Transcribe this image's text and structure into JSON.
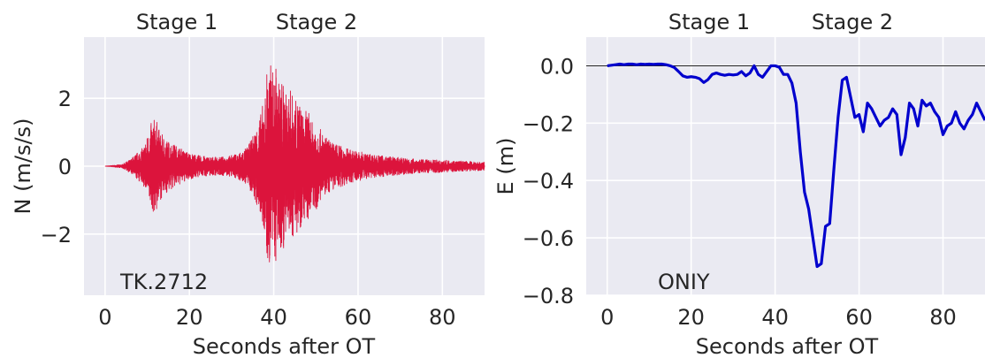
{
  "chart_data": [
    {
      "type": "line",
      "title": "",
      "xlabel": "Seconds after OT",
      "ylabel": "N (m/s/s)",
      "xlim": [
        -5,
        90
      ],
      "ylim": [
        -3.8,
        3.8
      ],
      "xticks": [
        0,
        20,
        40,
        60,
        80
      ],
      "xtick_labels": [
        "0",
        "20",
        "40",
        "60",
        "80"
      ],
      "yticks": [
        -2,
        0,
        2
      ],
      "ytick_labels": [
        "−2",
        "0",
        "2"
      ],
      "grid": true,
      "annotations": [
        "Stage 1",
        "Stage 2",
        "TK.2712"
      ],
      "series": [
        {
          "color": "#dc143c",
          "envelope_t": [
            0,
            4,
            6,
            8,
            9,
            10,
            11,
            12,
            13,
            15,
            17,
            19,
            21,
            23,
            25,
            27,
            29,
            31,
            33,
            34,
            35,
            36,
            37,
            38,
            38.5,
            39,
            39.5,
            40,
            40.5,
            41,
            42,
            43,
            44,
            45,
            46,
            47,
            48,
            49,
            50,
            52,
            54,
            56,
            58,
            60,
            62,
            65,
            70,
            75,
            80,
            85,
            90
          ],
          "envelope_amp": [
            0,
            0.05,
            0.2,
            0.45,
            0.55,
            0.9,
            1.3,
            1.45,
            1.0,
            0.75,
            0.6,
            0.45,
            0.35,
            0.3,
            0.28,
            0.26,
            0.3,
            0.35,
            0.5,
            0.6,
            0.9,
            1.2,
            1.6,
            2.2,
            3.2,
            2.9,
            3.1,
            2.6,
            3.0,
            2.5,
            2.6,
            2.1,
            2.3,
            1.9,
            2.0,
            1.5,
            1.7,
            1.3,
            1.3,
            0.9,
            0.7,
            0.6,
            0.5,
            0.45,
            0.38,
            0.32,
            0.25,
            0.2,
            0.18,
            0.15,
            0.12
          ]
        }
      ]
    },
    {
      "type": "line",
      "title": "",
      "xlabel": "Seconds after OT",
      "ylabel": "E (m)",
      "xlim": [
        -5,
        90
      ],
      "ylim": [
        -0.8,
        0.1
      ],
      "xticks": [
        0,
        20,
        40,
        60,
        80
      ],
      "xtick_labels": [
        "0",
        "20",
        "40",
        "60",
        "80"
      ],
      "yticks": [
        0.0,
        -0.2,
        -0.4,
        -0.6,
        -0.8
      ],
      "ytick_labels": [
        "0.0",
        "−0.2",
        "−0.4",
        "−0.6",
        "−0.8"
      ],
      "zero_line": true,
      "grid": true,
      "annotations": [
        "Stage 1",
        "Stage 2",
        "ONIY"
      ],
      "series": [
        {
          "color": "#0000cd",
          "x": [
            0,
            1,
            2,
            3,
            4,
            5,
            6,
            7,
            8,
            9,
            10,
            11,
            12,
            13,
            14,
            15,
            16,
            17,
            18,
            19,
            20,
            21,
            22,
            23,
            24,
            25,
            26,
            27,
            28,
            29,
            30,
            31,
            32,
            33,
            34,
            35,
            36,
            37,
            38,
            39,
            40,
            41,
            42,
            43,
            44,
            45,
            46,
            47,
            48,
            49,
            50,
            51,
            52,
            53,
            54,
            55,
            56,
            57,
            58,
            59,
            60,
            61,
            62,
            63,
            64,
            65,
            66,
            67,
            68,
            69,
            70,
            71,
            72,
            73,
            74,
            75,
            76,
            77,
            78,
            79,
            80,
            81,
            82,
            83,
            84,
            85,
            86,
            87,
            88,
            89,
            90
          ],
          "y": [
            0.0,
            0.002,
            0.004,
            0.006,
            0.004,
            0.006,
            0.006,
            0.004,
            0.006,
            0.005,
            0.006,
            0.005,
            0.006,
            0.006,
            0.004,
            0.0,
            -0.006,
            -0.02,
            -0.035,
            -0.04,
            -0.038,
            -0.04,
            -0.045,
            -0.058,
            -0.048,
            -0.03,
            -0.025,
            -0.03,
            -0.033,
            -0.03,
            -0.032,
            -0.03,
            -0.02,
            -0.035,
            -0.025,
            0.0,
            -0.03,
            -0.04,
            -0.02,
            0.0,
            0.0,
            -0.005,
            -0.03,
            -0.03,
            -0.06,
            -0.13,
            -0.3,
            -0.44,
            -0.5,
            -0.6,
            -0.7,
            -0.69,
            -0.56,
            -0.55,
            -0.36,
            -0.18,
            -0.05,
            -0.04,
            -0.11,
            -0.18,
            -0.17,
            -0.23,
            -0.13,
            -0.15,
            -0.18,
            -0.21,
            -0.19,
            -0.18,
            -0.15,
            -0.17,
            -0.31,
            -0.25,
            -0.13,
            -0.15,
            -0.21,
            -0.12,
            -0.14,
            -0.13,
            -0.16,
            -0.18,
            -0.24,
            -0.21,
            -0.2,
            -0.16,
            -0.2,
            -0.22,
            -0.19,
            -0.17,
            -0.13,
            -0.16,
            -0.19
          ]
        }
      ]
    }
  ]
}
